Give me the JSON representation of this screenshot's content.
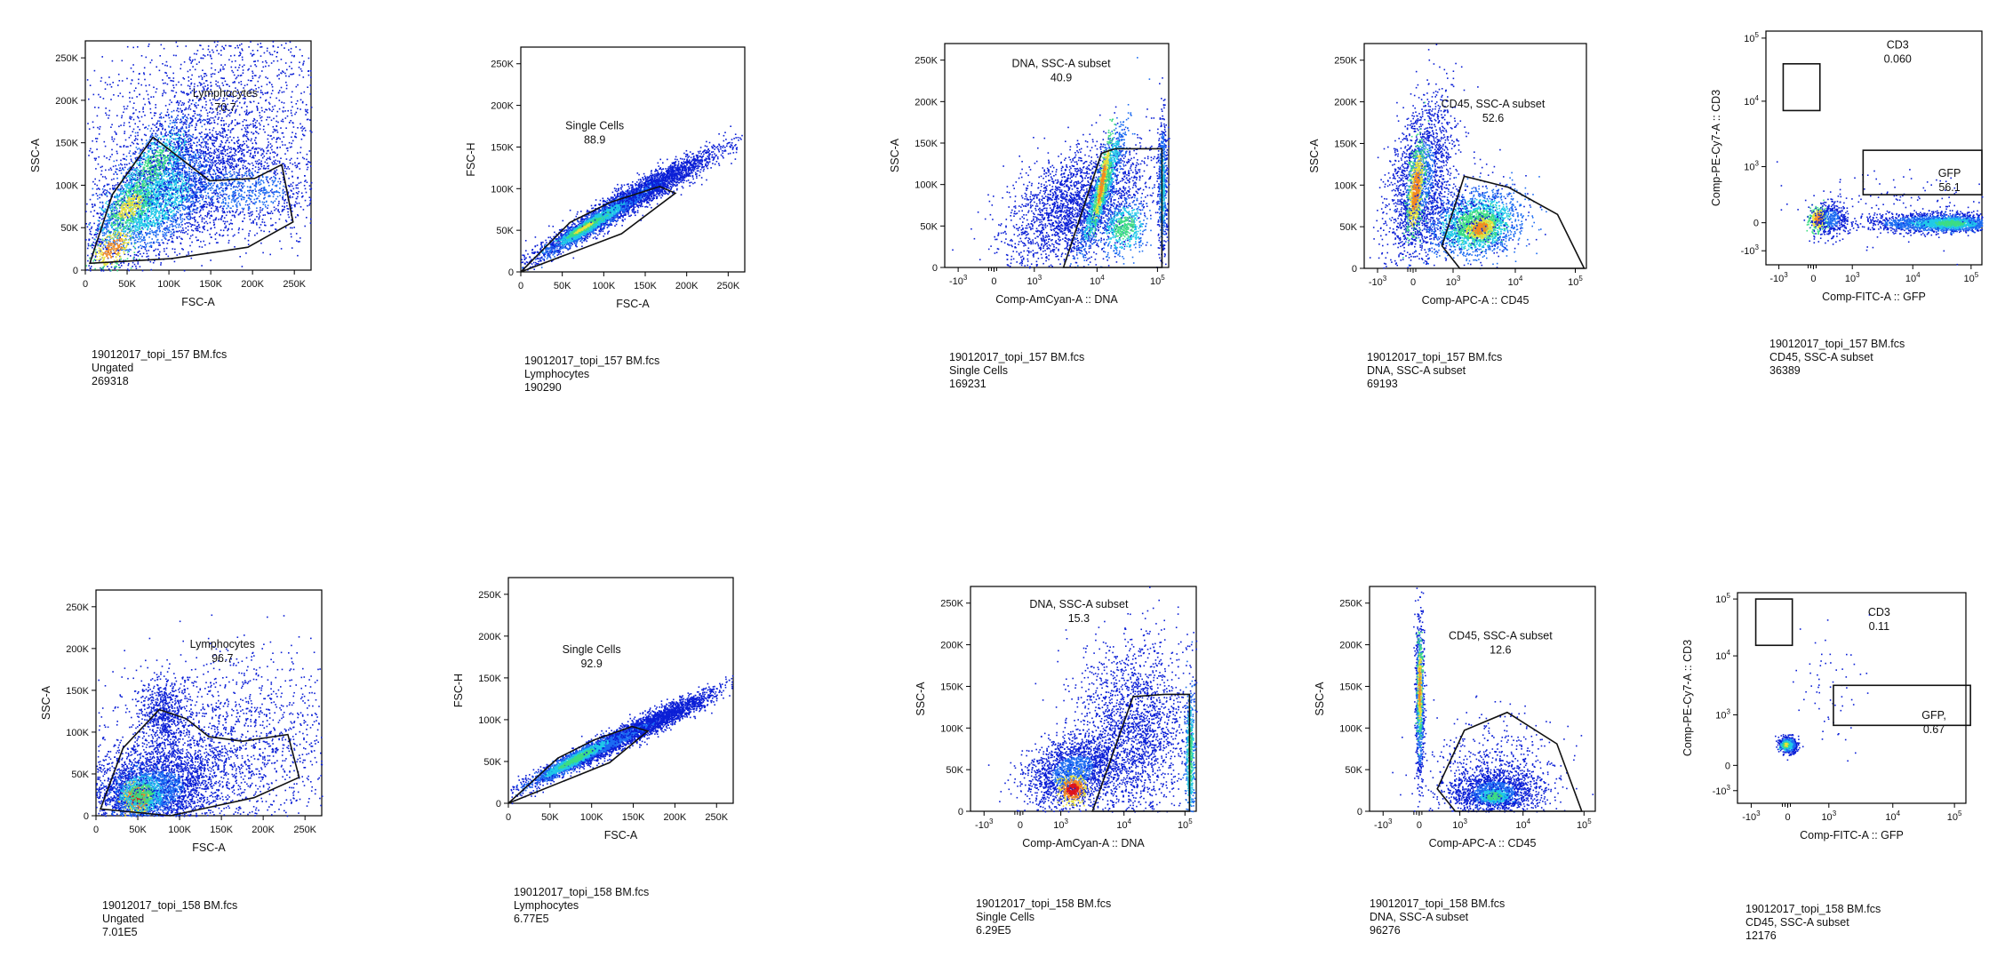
{
  "chart_data": [
    {
      "type": "scatter",
      "title": "",
      "xlabel": "FSC-A",
      "ylabel": "SSC-A",
      "xscale": "linear",
      "yscale": "linear",
      "xticks": [
        "0",
        "50K",
        "100K",
        "150K",
        "200K",
        "250K"
      ],
      "yticks": [
        "0",
        "50K",
        "100K",
        "150K",
        "200K",
        "250K"
      ],
      "xlim": [
        0,
        270000
      ],
      "ylim": [
        0,
        270000
      ],
      "gate": {
        "name": "Lymphocytes",
        "value": "70.7"
      },
      "info": {
        "file": "19012017_topi_157 BM.fcs",
        "parent": "Ungated",
        "count": "269318"
      }
    },
    {
      "type": "scatter",
      "title": "",
      "xlabel": "FSC-A",
      "ylabel": "FSC-H",
      "xscale": "linear",
      "yscale": "linear",
      "xticks": [
        "0",
        "50K",
        "100K",
        "150K",
        "200K",
        "250K"
      ],
      "yticks": [
        "0",
        "50K",
        "100K",
        "150K",
        "200K",
        "250K"
      ],
      "xlim": [
        0,
        270000
      ],
      "ylim": [
        0,
        270000
      ],
      "gate": {
        "name": "Single Cells",
        "value": "88.9"
      },
      "info": {
        "file": "19012017_topi_157 BM.fcs",
        "parent": "Lymphocytes",
        "count": "190290"
      }
    },
    {
      "type": "scatter",
      "title": "",
      "xlabel": "Comp-AmCyan-A :: DNA",
      "ylabel": "SSC-A",
      "xscale": "biexponential",
      "yscale": "linear",
      "xticks": [
        "-10^3",
        "0",
        "10^3",
        "10^4",
        "10^5"
      ],
      "yticks": [
        "0",
        "50K",
        "100K",
        "150K",
        "200K",
        "250K"
      ],
      "gate": {
        "name": "DNA, SSC-A subset",
        "value": "40.9"
      },
      "info": {
        "file": "19012017_topi_157 BM.fcs",
        "parent": "Single Cells",
        "count": "169231"
      }
    },
    {
      "type": "scatter",
      "title": "",
      "xlabel": "Comp-APC-A :: CD45",
      "ylabel": "SSC-A",
      "xscale": "biexponential",
      "yscale": "linear",
      "xticks": [
        "-10^3",
        "0",
        "10^3",
        "10^4",
        "10^5"
      ],
      "yticks": [
        "0",
        "50K",
        "100K",
        "150K",
        "200K",
        "250K"
      ],
      "gate": {
        "name": "CD45, SSC-A subset",
        "value": "52.6"
      },
      "info": {
        "file": "19012017_topi_157 BM.fcs",
        "parent": "DNA, SSC-A subset",
        "count": "69193"
      }
    },
    {
      "type": "scatter",
      "title": "",
      "xlabel": "Comp-FITC-A :: GFP",
      "ylabel": "Comp-PE-Cy7-A :: CD3",
      "xscale": "biexponential",
      "yscale": "biexponential",
      "xticks": [
        "-10^3",
        "0",
        "10^3",
        "10^4",
        "10^5"
      ],
      "yticks": [
        "-10^3",
        "0",
        "10^3",
        "10^4",
        "10^5"
      ],
      "gates": [
        {
          "name": "CD3",
          "value": "0.060"
        },
        {
          "name": "GFP",
          "value": "56.1"
        }
      ],
      "info": {
        "file": "19012017_topi_157 BM.fcs",
        "parent": "CD45, SSC-A subset",
        "count": "36389"
      }
    },
    {
      "type": "scatter",
      "title": "",
      "xlabel": "FSC-A",
      "ylabel": "SSC-A",
      "xscale": "linear",
      "yscale": "linear",
      "xticks": [
        "0",
        "50K",
        "100K",
        "150K",
        "200K",
        "250K"
      ],
      "yticks": [
        "0",
        "50K",
        "100K",
        "150K",
        "200K",
        "250K"
      ],
      "xlim": [
        0,
        270000
      ],
      "ylim": [
        0,
        270000
      ],
      "gate": {
        "name": "Lymphocytes",
        "value": "96.7"
      },
      "info": {
        "file": "19012017_topi_158 BM.fcs",
        "parent": "Ungated",
        "count": "7.01E5"
      }
    },
    {
      "type": "scatter",
      "title": "",
      "xlabel": "FSC-A",
      "ylabel": "FSC-H",
      "xscale": "linear",
      "yscale": "linear",
      "xticks": [
        "0",
        "50K",
        "100K",
        "150K",
        "200K",
        "250K"
      ],
      "yticks": [
        "0",
        "50K",
        "100K",
        "150K",
        "200K",
        "250K"
      ],
      "xlim": [
        0,
        270000
      ],
      "ylim": [
        0,
        270000
      ],
      "gate": {
        "name": "Single Cells",
        "value": "92.9"
      },
      "info": {
        "file": "19012017_topi_158 BM.fcs",
        "parent": "Lymphocytes",
        "count": "6.77E5"
      }
    },
    {
      "type": "scatter",
      "title": "",
      "xlabel": "Comp-AmCyan-A :: DNA",
      "ylabel": "SSC-A",
      "xscale": "biexponential",
      "yscale": "linear",
      "xticks": [
        "-10^3",
        "0",
        "10^3",
        "10^4",
        "10^5"
      ],
      "yticks": [
        "0",
        "50K",
        "100K",
        "150K",
        "200K",
        "250K"
      ],
      "gate": {
        "name": "DNA, SSC-A subset",
        "value": "15.3"
      },
      "info": {
        "file": "19012017_topi_158 BM.fcs",
        "parent": "Single Cells",
        "count": "6.29E5"
      }
    },
    {
      "type": "scatter",
      "title": "",
      "xlabel": "Comp-APC-A :: CD45",
      "ylabel": "SSC-A",
      "xscale": "biexponential",
      "yscale": "linear",
      "xticks": [
        "-10^3",
        "0",
        "10^3",
        "10^4",
        "10^5"
      ],
      "yticks": [
        "0",
        "50K",
        "100K",
        "150K",
        "200K",
        "250K"
      ],
      "gate": {
        "name": "CD45, SSC-A subset",
        "value": "12.6"
      },
      "info": {
        "file": "19012017_topi_158 BM.fcs",
        "parent": "DNA, SSC-A subset",
        "count": "96276"
      }
    },
    {
      "type": "scatter",
      "title": "",
      "xlabel": "Comp-FITC-A :: GFP",
      "ylabel": "Comp-PE-Cy7-A :: CD3",
      "xscale": "biexponential",
      "yscale": "biexponential",
      "xticks": [
        "-10^3",
        "0",
        "10^3",
        "10^4",
        "10^5"
      ],
      "yticks": [
        "-10^3",
        "0",
        "10^3",
        "10^4",
        "10^5"
      ],
      "gates": [
        {
          "name": "CD3",
          "value": "0.11"
        },
        {
          "name": "GFP,",
          "value": "0.67"
        }
      ],
      "info": {
        "file": "19012017_topi_158 BM.fcs",
        "parent": "CD45, SSC-A subset",
        "count": "12176"
      }
    }
  ],
  "density_colors": [
    "#0b1fd6",
    "#1c6cf2",
    "#20c9e8",
    "#3ddc84",
    "#e8e23a",
    "#f58a1f",
    "#e0151b"
  ]
}
